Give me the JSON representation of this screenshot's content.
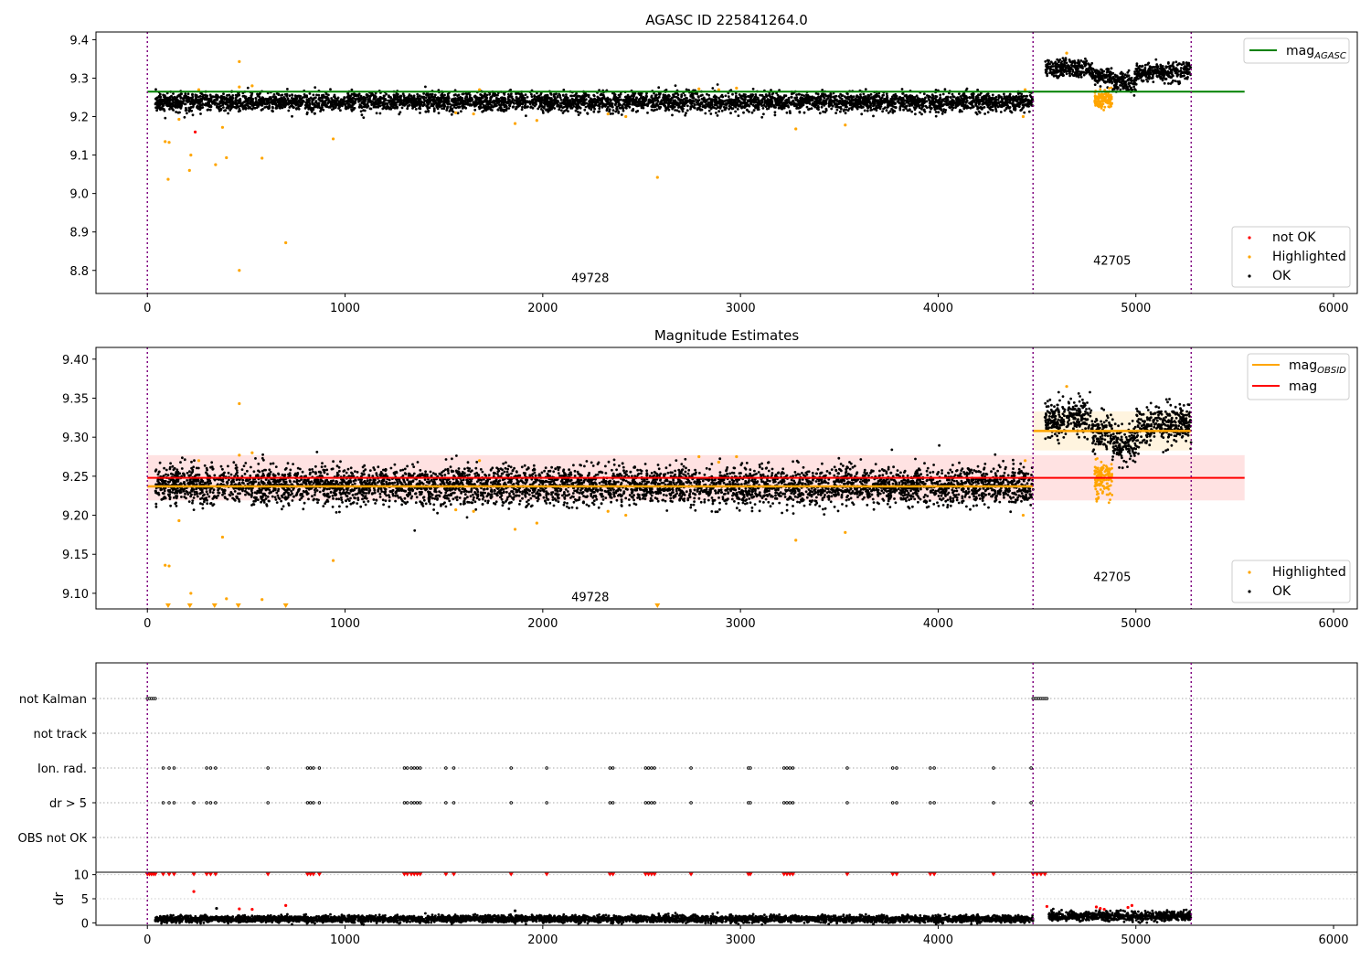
{
  "colors": {
    "ok": "#000000",
    "highlighted": "#ffa500",
    "not_ok": "#ff0000",
    "mag_agasc_line": "#008000",
    "mag_obsid_line": "#ffa500",
    "mag_line": "#ff0000",
    "obsid_boundary": "#800080",
    "mag_band": "#ffdddd",
    "obsid_band": "#fff2d9"
  },
  "chart_data": [
    {
      "type": "scatter",
      "title": "AGASC ID 225841264.0",
      "xlabel": "",
      "ylabel": "",
      "xlim": [
        -260,
        6120
      ],
      "ylim": [
        8.74,
        9.42
      ],
      "xticks": [
        "0",
        "1000",
        "2000",
        "3000",
        "4000",
        "5000",
        "6000"
      ],
      "xtick_values": [
        0,
        1000,
        2000,
        3000,
        4000,
        5000,
        6000
      ],
      "yticks": [
        "8.8",
        "8.9",
        "9.0",
        "9.1",
        "9.2",
        "9.3",
        "9.4"
      ],
      "ytick_values": [
        8.8,
        8.9,
        9.0,
        9.1,
        9.2,
        9.3,
        9.4
      ],
      "obsid_boundaries": [
        0,
        4480,
        5280
      ],
      "obsid_labels": [
        {
          "text": "49728",
          "x": 2240,
          "y": 8.77
        },
        {
          "text": "42705",
          "x": 4880,
          "y": 8.815
        }
      ],
      "lines": [
        {
          "name": "mag$_{AGASC}$",
          "legend": "mag",
          "legend_sub": "AGASC",
          "x": [
            0,
            5550
          ],
          "y": [
            9.265,
            9.265
          ],
          "color": "#008000"
        }
      ],
      "series": [
        {
          "name": "not OK",
          "color": "#ff0000",
          "points": [
            [
              242,
              9.16
            ]
          ]
        },
        {
          "name": "Highlighted",
          "color": "#ffa500",
          "points": [
            [
              90,
              9.135
            ],
            [
              110,
              9.133
            ],
            [
              105,
              9.037
            ],
            [
              160,
              9.193
            ],
            [
              213,
              9.06
            ],
            [
              220,
              9.1
            ],
            [
              260,
              9.27
            ],
            [
              345,
              9.075
            ],
            [
              380,
              9.172
            ],
            [
              400,
              9.093
            ],
            [
              465,
              9.343
            ],
            [
              465,
              8.8
            ],
            [
              465,
              9.277
            ],
            [
              530,
              9.28
            ],
            [
              580,
              9.092
            ],
            [
              700,
              8.872
            ],
            [
              940,
              9.142
            ],
            [
              1560,
              9.21
            ],
            [
              1650,
              9.207
            ],
            [
              1680,
              9.27
            ],
            [
              1860,
              9.182
            ],
            [
              1970,
              9.19
            ],
            [
              2330,
              9.207
            ],
            [
              2420,
              9.2
            ],
            [
              2580,
              9.042
            ],
            [
              2790,
              9.272
            ],
            [
              2890,
              9.27
            ],
            [
              2980,
              9.274
            ],
            [
              3280,
              9.168
            ],
            [
              3530,
              9.178
            ],
            [
              4430,
              9.2
            ],
            [
              4440,
              9.27
            ],
            [
              4650,
              9.365
            ]
          ]
        },
        {
          "name": "OK",
          "color": "#000000",
          "points": []
        }
      ],
      "ok_segments": [
        {
          "x_start": 40,
          "x_end": 4480,
          "mean": 9.238,
          "spread": 0.012
        },
        {
          "x_start": 4540,
          "x_end": 4780,
          "mean": 9.325,
          "spread": 0.012
        },
        {
          "x_start": 4780,
          "x_end": 4880,
          "mean": 9.305,
          "spread": 0.01
        },
        {
          "x_start": 4880,
          "x_end": 5000,
          "mean": 9.29,
          "spread": 0.012
        },
        {
          "x_start": 5000,
          "x_end": 5280,
          "mean": 9.315,
          "spread": 0.012
        }
      ],
      "highlight_cluster": {
        "x_start": 4790,
        "x_end": 4880,
        "mean": 9.245,
        "spread": 0.012
      },
      "legends": [
        {
          "position": "upper-right",
          "entries": [
            {
              "label": "mag",
              "sub": "AGASC",
              "kind": "line",
              "color": "#008000"
            }
          ]
        },
        {
          "position": "lower-right",
          "entries": [
            {
              "label": "not OK",
              "kind": "dot",
              "color": "#ff0000"
            },
            {
              "label": "Highlighted",
              "kind": "dot",
              "color": "#ffa500"
            },
            {
              "label": "OK",
              "kind": "dot",
              "color": "#000000"
            }
          ]
        }
      ]
    },
    {
      "type": "scatter",
      "title": "Magnitude Estimates",
      "xlabel": "",
      "ylabel": "",
      "xlim": [
        -260,
        6120
      ],
      "ylim": [
        9.08,
        9.415
      ],
      "xticks": [
        "0",
        "1000",
        "2000",
        "3000",
        "4000",
        "5000",
        "6000"
      ],
      "xtick_values": [
        0,
        1000,
        2000,
        3000,
        4000,
        5000,
        6000
      ],
      "yticks": [
        "9.10",
        "9.15",
        "9.20",
        "9.25",
        "9.30",
        "9.35",
        "9.40"
      ],
      "ytick_values": [
        9.1,
        9.15,
        9.2,
        9.25,
        9.3,
        9.35,
        9.4
      ],
      "obsid_boundaries": [
        0,
        4480,
        5280
      ],
      "obsid_labels": [
        {
          "text": "49728",
          "x": 2240,
          "y": 9.09
        },
        {
          "text": "42705",
          "x": 4880,
          "y": 9.116
        }
      ],
      "lines": [
        {
          "name": "mag$_{OBSID}$",
          "color": "#ffa500",
          "segments": [
            {
              "x": [
                0,
                4480
              ],
              "y": [
                9.237,
                9.237
              ]
            },
            {
              "x": [
                4480,
                5280
              ],
              "y": [
                9.308,
                9.308
              ]
            }
          ]
        },
        {
          "name": "mag",
          "color": "#ff0000",
          "x": [
            0,
            5550
          ],
          "y": [
            9.248,
            9.248
          ]
        }
      ],
      "bands": [
        {
          "x": [
            0,
            5550
          ],
          "y": [
            9.219,
            9.277
          ],
          "color": "#ffdddd"
        },
        {
          "x": [
            4480,
            5280
          ],
          "y": [
            9.283,
            9.333
          ],
          "color": "#fff2d9"
        }
      ],
      "series": [
        {
          "name": "Highlighted",
          "color": "#ffa500",
          "points": [
            [
              90,
              9.136
            ],
            [
              110,
              9.135
            ],
            [
              160,
              9.193
            ],
            [
              220,
              9.1
            ],
            [
              260,
              9.27
            ],
            [
              380,
              9.172
            ],
            [
              400,
              9.093
            ],
            [
              465,
              9.343
            ],
            [
              465,
              9.277
            ],
            [
              530,
              9.28
            ],
            [
              580,
              9.092
            ],
            [
              940,
              9.142
            ],
            [
              1560,
              9.207
            ],
            [
              1650,
              9.205
            ],
            [
              1680,
              9.27
            ],
            [
              1860,
              9.182
            ],
            [
              1970,
              9.19
            ],
            [
              2330,
              9.205
            ],
            [
              2420,
              9.2
            ],
            [
              2790,
              9.275
            ],
            [
              2890,
              9.268
            ],
            [
              2980,
              9.275
            ],
            [
              3280,
              9.168
            ],
            [
              3530,
              9.178
            ],
            [
              4430,
              9.2
            ],
            [
              4440,
              9.27
            ],
            [
              4650,
              9.365
            ]
          ]
        },
        {
          "name": "OK",
          "color": "#000000",
          "points": []
        }
      ],
      "clipped_markers_x": [
        105,
        215,
        340,
        460,
        700,
        2580
      ],
      "ok_segments": [
        {
          "x_start": 40,
          "x_end": 4480,
          "mean": 9.238,
          "spread": 0.012
        },
        {
          "x_start": 4540,
          "x_end": 4780,
          "mean": 9.325,
          "spread": 0.012
        },
        {
          "x_start": 4780,
          "x_end": 4880,
          "mean": 9.305,
          "spread": 0.01
        },
        {
          "x_start": 4880,
          "x_end": 5000,
          "mean": 9.29,
          "spread": 0.012
        },
        {
          "x_start": 5000,
          "x_end": 5280,
          "mean": 9.315,
          "spread": 0.012
        }
      ],
      "highlight_cluster": {
        "x_start": 4790,
        "x_end": 4880,
        "mean": 9.245,
        "spread": 0.012
      },
      "legends": [
        {
          "position": "upper-right",
          "entries": [
            {
              "label": "mag",
              "sub": "OBSID",
              "kind": "line",
              "color": "#ffa500"
            },
            {
              "label": "mag",
              "kind": "line",
              "color": "#ff0000"
            }
          ]
        },
        {
          "position": "lower-right",
          "entries": [
            {
              "label": "Highlighted",
              "kind": "dot",
              "color": "#ffa500"
            },
            {
              "label": "OK",
              "kind": "dot",
              "color": "#000000"
            }
          ]
        }
      ]
    },
    {
      "type": "scatter",
      "title": "",
      "categories": [
        "not Kalman",
        "not track",
        "Ion. rad.",
        "dr > 5",
        "OBS not OK"
      ],
      "xlim": [
        -260,
        6120
      ],
      "obsid_boundaries": [
        0,
        4480,
        5280
      ],
      "flags": {
        "not Kalman": [
          0,
          10,
          20,
          30,
          40,
          4480,
          4490,
          4500,
          4510,
          4520,
          4530,
          4540,
          4550
        ],
        "not track": [],
        "Ion. rad.": [
          80,
          110,
          135,
          300,
          320,
          345,
          610,
          810,
          825,
          840,
          870,
          1300,
          1315,
          1335,
          1350,
          1365,
          1380,
          1510,
          1550,
          1840,
          2020,
          2340,
          2355,
          2520,
          2535,
          2550,
          2565,
          2750,
          3040,
          3050,
          3220,
          3235,
          3250,
          3265,
          3540,
          3770,
          3790,
          3960,
          3980,
          4280,
          4470
        ],
        "dr > 5": [
          80,
          110,
          135,
          235,
          300,
          320,
          345,
          610,
          810,
          825,
          840,
          870,
          1300,
          1315,
          1335,
          1350,
          1365,
          1380,
          1510,
          1550,
          1840,
          2020,
          2340,
          2355,
          2520,
          2535,
          2550,
          2565,
          2750,
          3040,
          3050,
          3220,
          3235,
          3250,
          3265,
          3540,
          3770,
          3790,
          3960,
          3980,
          4280,
          4470
        ],
        "OBS not OK": []
      }
    },
    {
      "type": "scatter",
      "title": "",
      "xlabel": "",
      "ylabel": "dr",
      "xlim": [
        -260,
        6120
      ],
      "ylim": [
        -0.5,
        10.5
      ],
      "xticks": [
        "0",
        "1000",
        "2000",
        "3000",
        "4000",
        "5000",
        "6000"
      ],
      "xtick_values": [
        0,
        1000,
        2000,
        3000,
        4000,
        5000,
        6000
      ],
      "yticks": [
        "0",
        "5",
        "10"
      ],
      "ytick_values": [
        0,
        5,
        10
      ],
      "obsid_boundaries": [
        0,
        4480,
        5280
      ],
      "clipped_markers_x": [
        0,
        10,
        20,
        30,
        40,
        80,
        110,
        135,
        235,
        300,
        320,
        345,
        610,
        810,
        825,
        840,
        870,
        1300,
        1315,
        1335,
        1350,
        1365,
        1380,
        1510,
        1550,
        1840,
        2020,
        2340,
        2355,
        2520,
        2535,
        2550,
        2565,
        2750,
        3040,
        3050,
        3220,
        3235,
        3250,
        3265,
        3540,
        3770,
        3790,
        3960,
        3980,
        4280,
        4480,
        4500,
        4520,
        4540
      ],
      "series": [
        {
          "name": "not OK",
          "color": "#ff0000",
          "points": [
            [
              235,
              6.5
            ],
            [
              465,
              2.9
            ],
            [
              530,
              2.8
            ],
            [
              700,
              3.6
            ],
            [
              4550,
              3.4
            ],
            [
              4800,
              3.3
            ],
            [
              4820,
              3.0
            ],
            [
              4840,
              2.8
            ],
            [
              4960,
              3.2
            ],
            [
              4980,
              3.6
            ]
          ]
        },
        {
          "name": "OK",
          "color": "#000000",
          "points": [
            [
              350,
              3.0
            ],
            [
              1860,
              2.5
            ]
          ]
        }
      ],
      "ok_segments": [
        {
          "x_start": 40,
          "x_end": 4480,
          "mean": 0.8,
          "spread": 0.35
        },
        {
          "x_start": 4560,
          "x_end": 5280,
          "mean": 1.4,
          "spread": 0.5
        }
      ]
    }
  ]
}
